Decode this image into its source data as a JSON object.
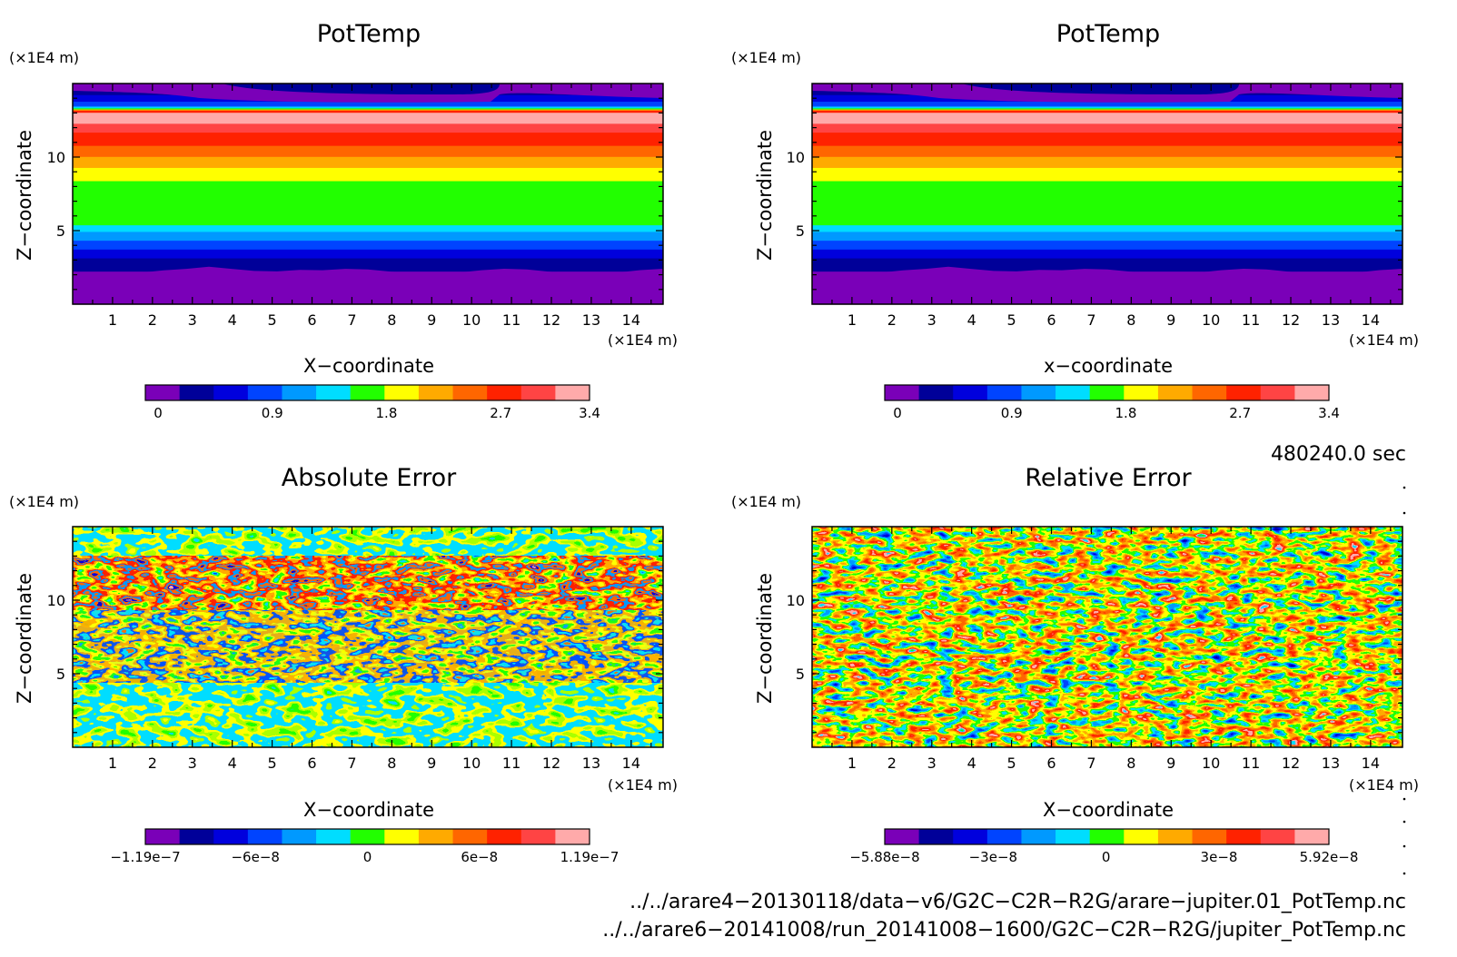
{
  "chart_data": [
    {
      "type": "heatmap",
      "title": "PotTemp",
      "xlabel": "X−coordinate",
      "ylabel": "Z−coordinate",
      "x_unit": "(×1E4 m)",
      "y_unit": "(×1E4 m)",
      "xticks": [
        "1",
        "2",
        "3",
        "4",
        "5",
        "6",
        "7",
        "8",
        "9",
        "10",
        "11",
        "12",
        "13",
        "14"
      ],
      "yticks": [
        "5",
        "10"
      ],
      "xlim": [
        0,
        14.8
      ],
      "ylim": [
        0,
        15
      ],
      "field": "layered",
      "colorbar": {
        "min": -0.1,
        "max": 3.4,
        "labels": [
          "0",
          "0.9",
          "1.8",
          "2.7",
          "3.4"
        ],
        "label_values": [
          0,
          0.9,
          1.8,
          2.7,
          3.4
        ]
      }
    },
    {
      "type": "heatmap",
      "title": "PotTemp",
      "xlabel": "x−coordinate",
      "ylabel": "Z−coordinate",
      "x_unit": "(×1E4 m)",
      "y_unit": "(×1E4 m)",
      "xticks": [
        "1",
        "2",
        "3",
        "4",
        "5",
        "6",
        "7",
        "8",
        "9",
        "10",
        "11",
        "12",
        "13",
        "14"
      ],
      "yticks": [
        "5",
        "10"
      ],
      "xlim": [
        0,
        14.8
      ],
      "ylim": [
        0,
        15
      ],
      "field": "layered",
      "colorbar": {
        "min": -0.1,
        "max": 3.4,
        "labels": [
          "0",
          "0.9",
          "1.8",
          "2.7",
          "3.4"
        ],
        "label_values": [
          0,
          0.9,
          1.8,
          2.7,
          3.4
        ]
      }
    },
    {
      "type": "heatmap",
      "title": "Absolute Error",
      "xlabel": "X−coordinate",
      "ylabel": "Z−coordinate",
      "x_unit": "(×1E4 m)",
      "y_unit": "(×1E4 m)",
      "xticks": [
        "1",
        "2",
        "3",
        "4",
        "5",
        "6",
        "7",
        "8",
        "9",
        "10",
        "11",
        "12",
        "13",
        "14"
      ],
      "yticks": [
        "5",
        "10"
      ],
      "xlim": [
        0,
        14.8
      ],
      "ylim": [
        0,
        15
      ],
      "field": "abs_noise",
      "colorbar": {
        "min": -1.19e-07,
        "max": 1.19e-07,
        "labels": [
          "−1.19e−7",
          "−6e−8",
          "0",
          "6e−8",
          "1.19e−7"
        ],
        "label_values": [
          -1.19e-07,
          -6e-08,
          0,
          6e-08,
          1.19e-07
        ]
      }
    },
    {
      "type": "heatmap",
      "title": "Relative Error",
      "xlabel": "X−coordinate",
      "ylabel": "Z−coordinate",
      "x_unit": "(×1E4 m)",
      "y_unit": "(×1E4 m)",
      "xticks": [
        "1",
        "2",
        "3",
        "4",
        "5",
        "6",
        "7",
        "8",
        "9",
        "10",
        "11",
        "12",
        "13",
        "14"
      ],
      "yticks": [
        "5",
        "10"
      ],
      "xlim": [
        0,
        14.8
      ],
      "ylim": [
        0,
        15
      ],
      "field": "rel_noise",
      "colorbar": {
        "min": -5.88e-08,
        "max": 5.92e-08,
        "labels": [
          "−5.88e−8",
          "−3e−8",
          "0",
          "3e−8",
          "5.92e−8"
        ],
        "label_values": [
          -5.88e-08,
          -3e-08,
          0,
          3e-08,
          5.92e-08
        ]
      }
    }
  ],
  "palette": [
    "#7a00b8",
    "#000099",
    "#0000dd",
    "#0044ff",
    "#0099ff",
    "#00ddff",
    "#22ff00",
    "#ffff00",
    "#ffaa00",
    "#ff6600",
    "#ff2200",
    "#ff4444",
    "#ffaaaa"
  ],
  "time_label": "480240.0 sec",
  "footer": {
    "file1": "../../arare4−20130118/data−v6/G2C−C2R−R2G/arare−jupiter.01_PotTemp.nc",
    "file2": "../../arare6−20141008/run_20141008−1600/G2C−C2R−R2G/jupiter_PotTemp.nc"
  }
}
